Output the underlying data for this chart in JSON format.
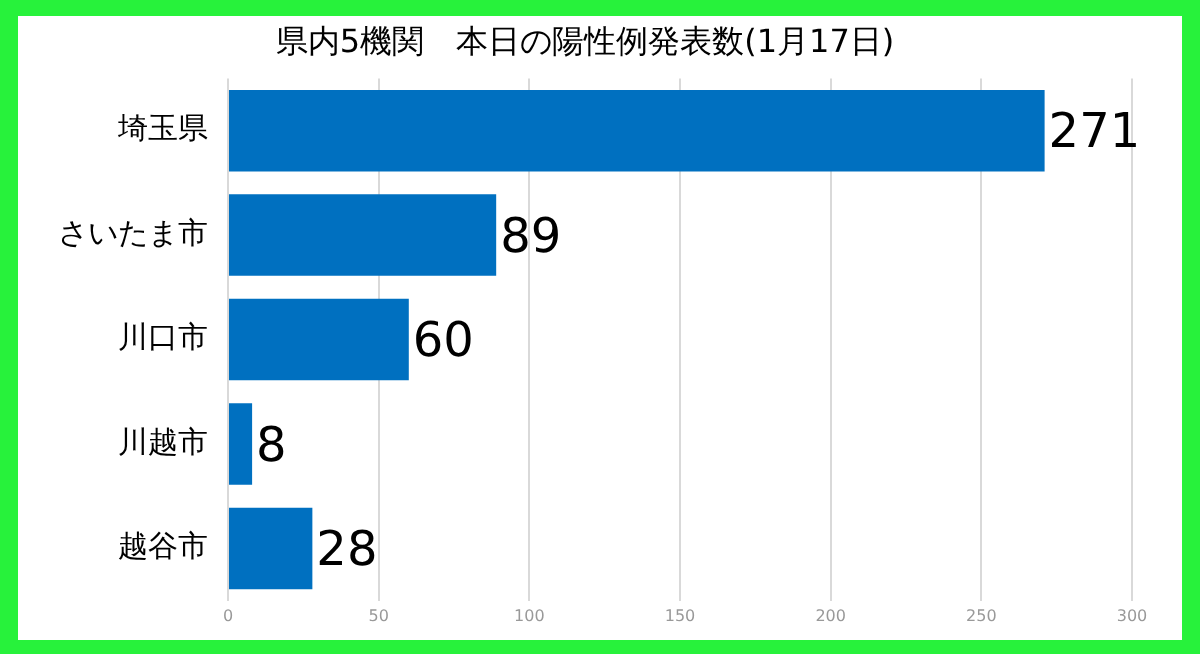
{
  "chart_data": {
    "type": "bar",
    "orientation": "horizontal",
    "title": "県内5機関　本日の陽性例発表数(1月17日)",
    "categories": [
      "埼玉県",
      "さいたま市",
      "川口市",
      "川越市",
      "越谷市"
    ],
    "values": [
      271,
      89,
      60,
      8,
      28
    ],
    "color": "#0070c0",
    "xlim": [
      0,
      300
    ],
    "xticks": [
      0,
      50,
      100,
      150,
      200,
      250,
      300
    ],
    "grid": "x",
    "data_labels": true
  }
}
